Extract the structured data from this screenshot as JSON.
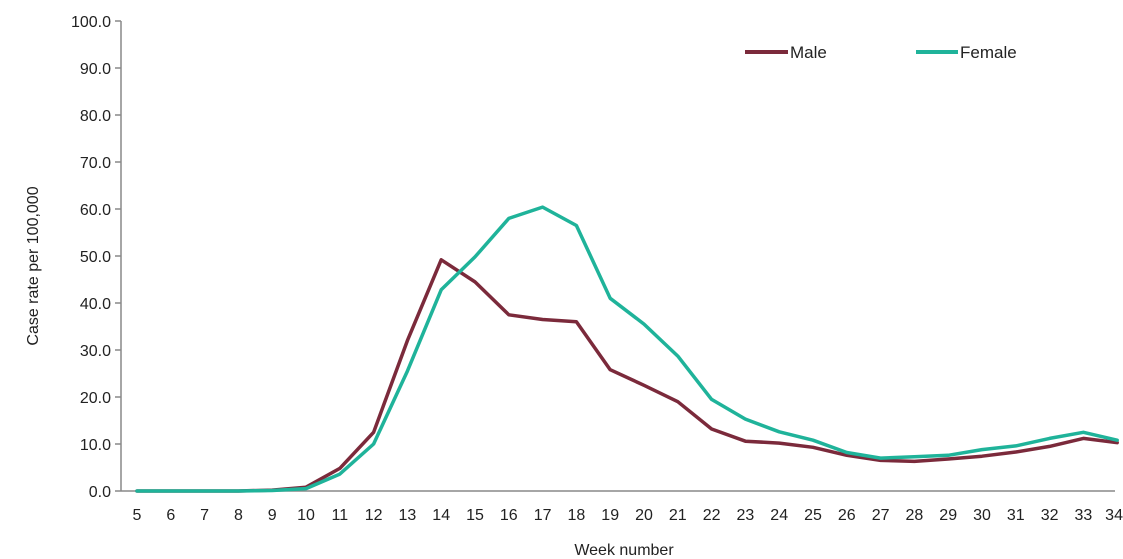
{
  "chart_data": {
    "type": "line",
    "title": "",
    "xlabel": "Week number",
    "ylabel": "Case rate per 100,000",
    "categories": [
      "5",
      "6",
      "7",
      "8",
      "9",
      "10",
      "11",
      "12",
      "13",
      "14",
      "15",
      "16",
      "17",
      "18",
      "19",
      "20",
      "21",
      "22",
      "23",
      "24",
      "25",
      "26",
      "27",
      "28",
      "29",
      "30",
      "31",
      "32",
      "33",
      "34*"
    ],
    "ylim": [
      0,
      100
    ],
    "yticks": [
      "0.0",
      "10.0",
      "20.0",
      "30.0",
      "40.0",
      "50.0",
      "60.0",
      "70.0",
      "80.0",
      "90.0",
      "100.0"
    ],
    "grid": false,
    "legend_position": "top-right",
    "series": [
      {
        "name": "Male",
        "color": "#7b2a3b",
        "values": [
          0,
          0,
          0,
          0,
          0.2,
          0.8,
          4.8,
          12.5,
          32.0,
          49.2,
          44.5,
          37.5,
          36.5,
          36.0,
          25.8,
          22.5,
          19.0,
          13.2,
          10.6,
          10.2,
          9.3,
          7.6,
          6.5,
          6.3,
          6.8,
          7.4,
          8.3,
          9.5,
          11.2,
          10.3
        ]
      },
      {
        "name": "Female",
        "color": "#1fb39a",
        "values": [
          0,
          0,
          0,
          0,
          0.1,
          0.5,
          3.6,
          10.0,
          25.5,
          42.8,
          49.8,
          58.0,
          60.4,
          56.5,
          41.0,
          35.5,
          28.7,
          19.5,
          15.3,
          12.6,
          10.8,
          8.2,
          7.0,
          7.3,
          7.6,
          8.8,
          9.6,
          11.2,
          12.5,
          10.8
        ]
      }
    ]
  }
}
